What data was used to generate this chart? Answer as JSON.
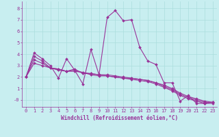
{
  "xlabel": "Windchill (Refroidissement éolien,°C)",
  "bg_color": "#c8eef0",
  "line_color": "#993399",
  "grid_color": "#aadddd",
  "series": [
    {
      "x": [
        0,
        1,
        2,
        3,
        4,
        5,
        6,
        7,
        8,
        9,
        10,
        11,
        12,
        13,
        14,
        15,
        16,
        17,
        18,
        19,
        20,
        21,
        22,
        23
      ],
      "y": [
        2.0,
        4.1,
        3.6,
        3.0,
        1.9,
        3.6,
        2.6,
        1.4,
        4.4,
        2.2,
        7.2,
        7.8,
        6.9,
        7.0,
        4.6,
        3.4,
        3.1,
        1.5,
        1.5,
        -0.1,
        0.4,
        -0.3,
        -0.3,
        -0.2
      ]
    },
    {
      "x": [
        0,
        1,
        2,
        3,
        4,
        5,
        6,
        7,
        8,
        9,
        10,
        11,
        12,
        13,
        14,
        15,
        16,
        17,
        18,
        19,
        20,
        21,
        22,
        23
      ],
      "y": [
        2.0,
        3.8,
        3.4,
        2.8,
        2.6,
        2.5,
        2.7,
        2.3,
        2.3,
        2.2,
        2.2,
        2.1,
        2.0,
        1.9,
        1.8,
        1.7,
        1.5,
        1.3,
        1.0,
        0.6,
        0.3,
        0.1,
        -0.1,
        -0.2
      ]
    },
    {
      "x": [
        0,
        1,
        2,
        3,
        4,
        5,
        6,
        7,
        8,
        9,
        10,
        11,
        12,
        13,
        14,
        15,
        16,
        17,
        18,
        19,
        20,
        21,
        22,
        23
      ],
      "y": [
        2.0,
        3.5,
        3.2,
        2.8,
        2.7,
        2.5,
        2.6,
        2.4,
        2.3,
        2.2,
        2.1,
        2.0,
        1.9,
        1.9,
        1.8,
        1.7,
        1.5,
        1.2,
        0.9,
        0.5,
        0.2,
        0.0,
        -0.2,
        -0.2
      ]
    },
    {
      "x": [
        0,
        1,
        2,
        3,
        4,
        5,
        6,
        7,
        8,
        9,
        10,
        11,
        12,
        13,
        14,
        15,
        16,
        17,
        18,
        19,
        20,
        21,
        22,
        23
      ],
      "y": [
        2.0,
        3.2,
        3.0,
        2.8,
        2.7,
        2.5,
        2.5,
        2.4,
        2.2,
        2.1,
        2.1,
        2.0,
        1.9,
        1.8,
        1.7,
        1.6,
        1.4,
        1.1,
        0.8,
        0.4,
        0.1,
        -0.1,
        -0.3,
        -0.3
      ]
    }
  ],
  "xlim": [
    -0.5,
    23.5
  ],
  "ylim": [
    -0.6,
    8.6
  ],
  "yticks": [
    0,
    1,
    2,
    3,
    4,
    5,
    6,
    7,
    8
  ],
  "ytick_labels": [
    "-0",
    "1",
    "2",
    "3",
    "4",
    "5",
    "6",
    "7",
    "8"
  ],
  "xticks": [
    0,
    1,
    2,
    3,
    4,
    5,
    6,
    7,
    8,
    9,
    10,
    11,
    12,
    13,
    14,
    15,
    16,
    17,
    18,
    19,
    20,
    21,
    22,
    23
  ],
  "marker": "D",
  "markersize": 2.0,
  "linewidth": 0.8,
  "tick_fontsize": 5.0,
  "label_fontsize": 5.5
}
